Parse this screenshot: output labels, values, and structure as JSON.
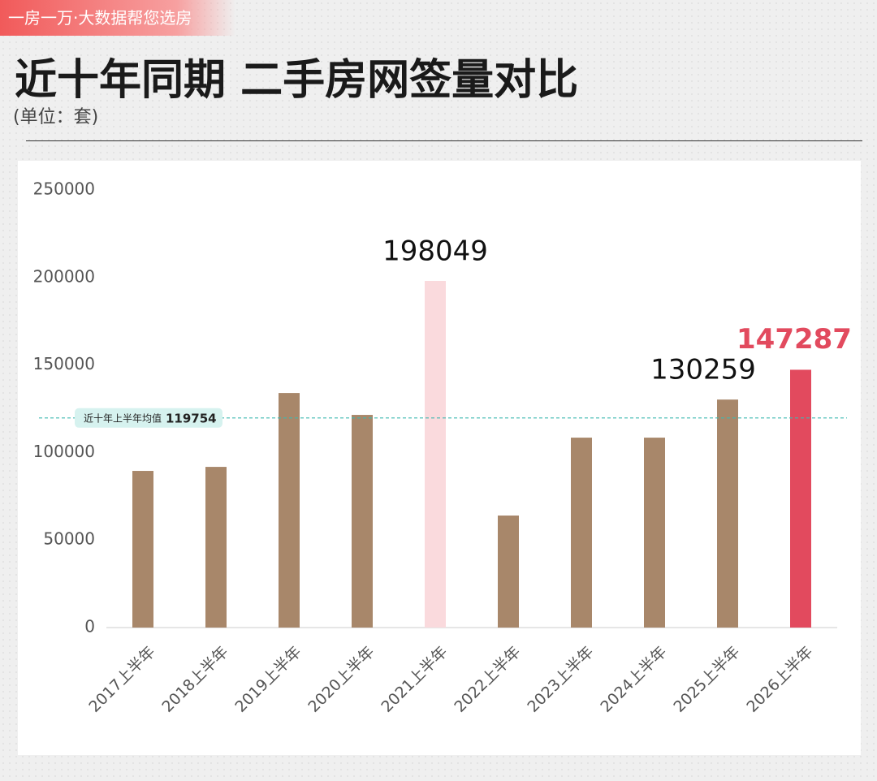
{
  "header": {
    "badge": "一房一万·大数据帮您选房"
  },
  "chart_data": {
    "type": "bar",
    "title": "近十年同期 二手房网签量对比",
    "subtitle": "(单位：套)",
    "categories": [
      "2017上半年",
      "2018上半年",
      "2019上半年",
      "2020上半年",
      "2021上半年",
      "2022上半年",
      "2023上半年",
      "2024上半年",
      "2025上半年",
      "2026上半年"
    ],
    "values": [
      89500,
      91800,
      134000,
      121500,
      198049,
      64000,
      108500,
      108500,
      130259,
      147287
    ],
    "value_labels": [
      null,
      null,
      null,
      null,
      "198049",
      null,
      null,
      null,
      "130259",
      "147287"
    ],
    "colors": [
      "#a8876a",
      "#a8876a",
      "#a8876a",
      "#a8876a",
      "#fadadd",
      "#a8876a",
      "#a8876a",
      "#a8876a",
      "#a8876a",
      "#e24a5e"
    ],
    "value_label_colors": [
      "#111",
      "#111",
      "#111",
      "#111",
      "#111",
      "#111",
      "#111",
      "#111",
      "#111",
      "#e24a5e"
    ],
    "ylim": [
      0,
      250000
    ],
    "yticks": [
      0,
      50000,
      100000,
      150000,
      200000,
      250000
    ],
    "reference_line": {
      "label": "近十年上半年均值",
      "value": 119754,
      "color": "#3fb8b0"
    }
  }
}
